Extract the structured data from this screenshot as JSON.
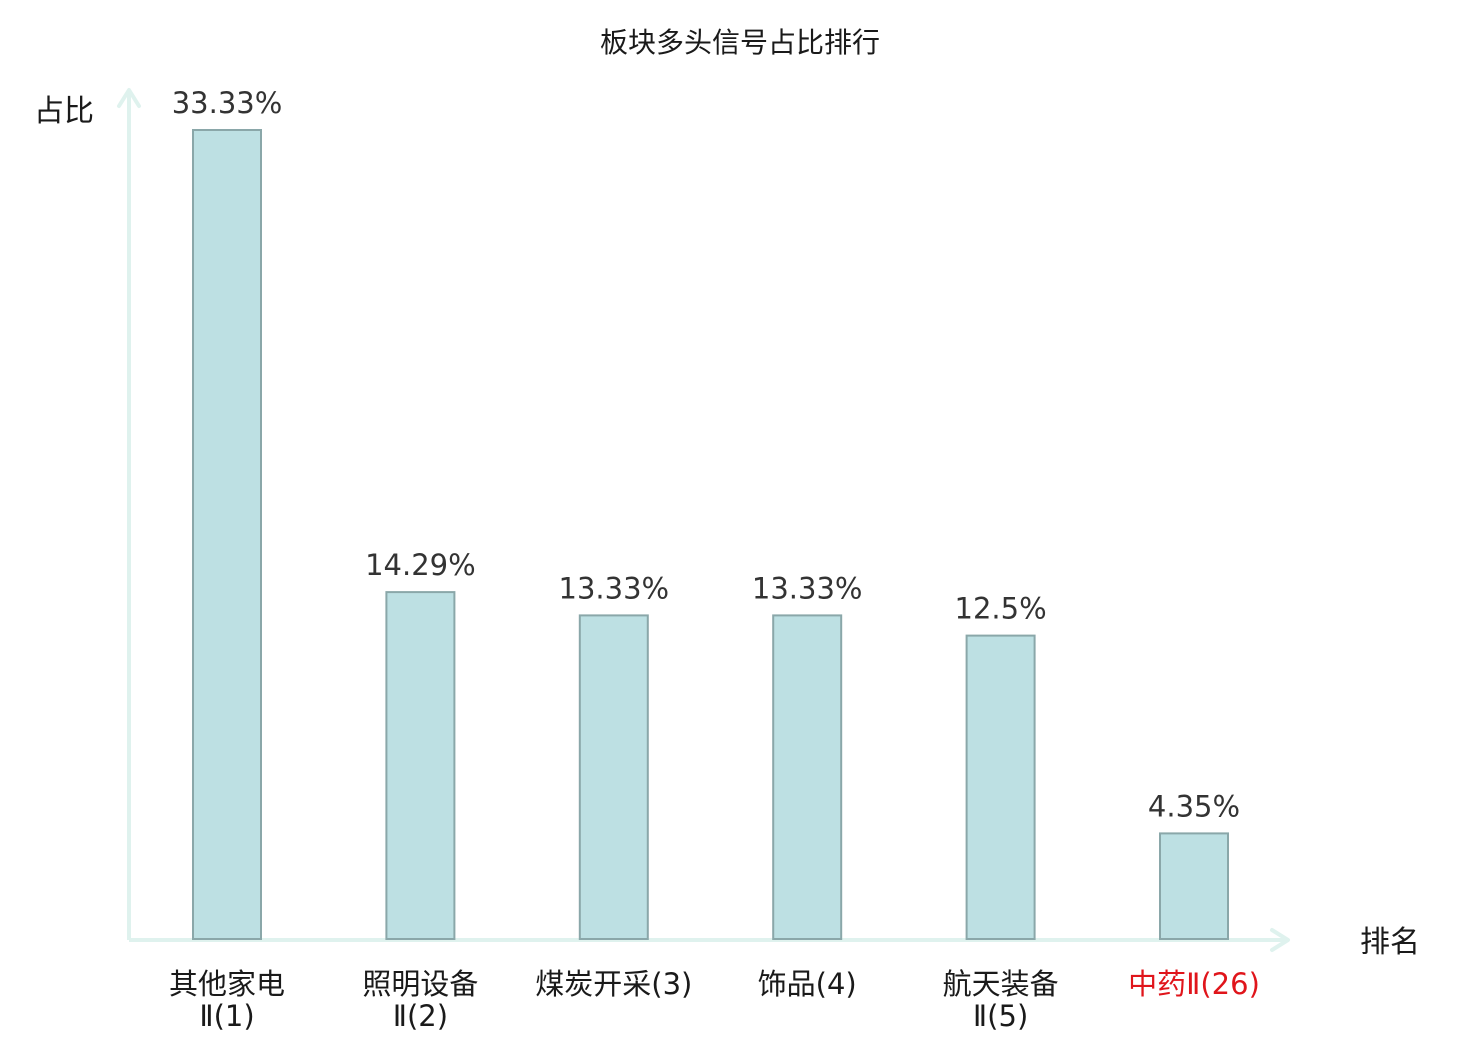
{
  "chart_data": {
    "type": "bar",
    "title": "板块多头信号占比排行",
    "ylabel": "占比",
    "xlabel": "排名",
    "ylim": [
      0,
      35
    ],
    "grid": false,
    "legend": "none",
    "categories": [
      {
        "lines": [
          "其他家电",
          "Ⅱ(1)"
        ],
        "highlight": false
      },
      {
        "lines": [
          "照明设备",
          "Ⅱ(2)"
        ],
        "highlight": false
      },
      {
        "lines": [
          "煤炭开采(3)"
        ],
        "highlight": false
      },
      {
        "lines": [
          "饰品(4)"
        ],
        "highlight": false
      },
      {
        "lines": [
          "航天装备",
          "Ⅱ(5)"
        ],
        "highlight": false
      },
      {
        "lines": [
          "中药Ⅱ(26)"
        ],
        "highlight": true
      }
    ],
    "values": [
      33.33,
      14.29,
      13.33,
      13.33,
      12.5,
      4.35
    ],
    "value_labels": [
      "33.33%",
      "14.29%",
      "13.33%",
      "13.33%",
      "12.5%",
      "4.35%"
    ]
  },
  "colors": {
    "bar_fill": "#bde0e3",
    "bar_stroke": "#8aa7a9",
    "axis": "#dff2ee",
    "text": "#1a1a1a",
    "value_text": "#333333",
    "highlight_text": "#e0151b"
  }
}
